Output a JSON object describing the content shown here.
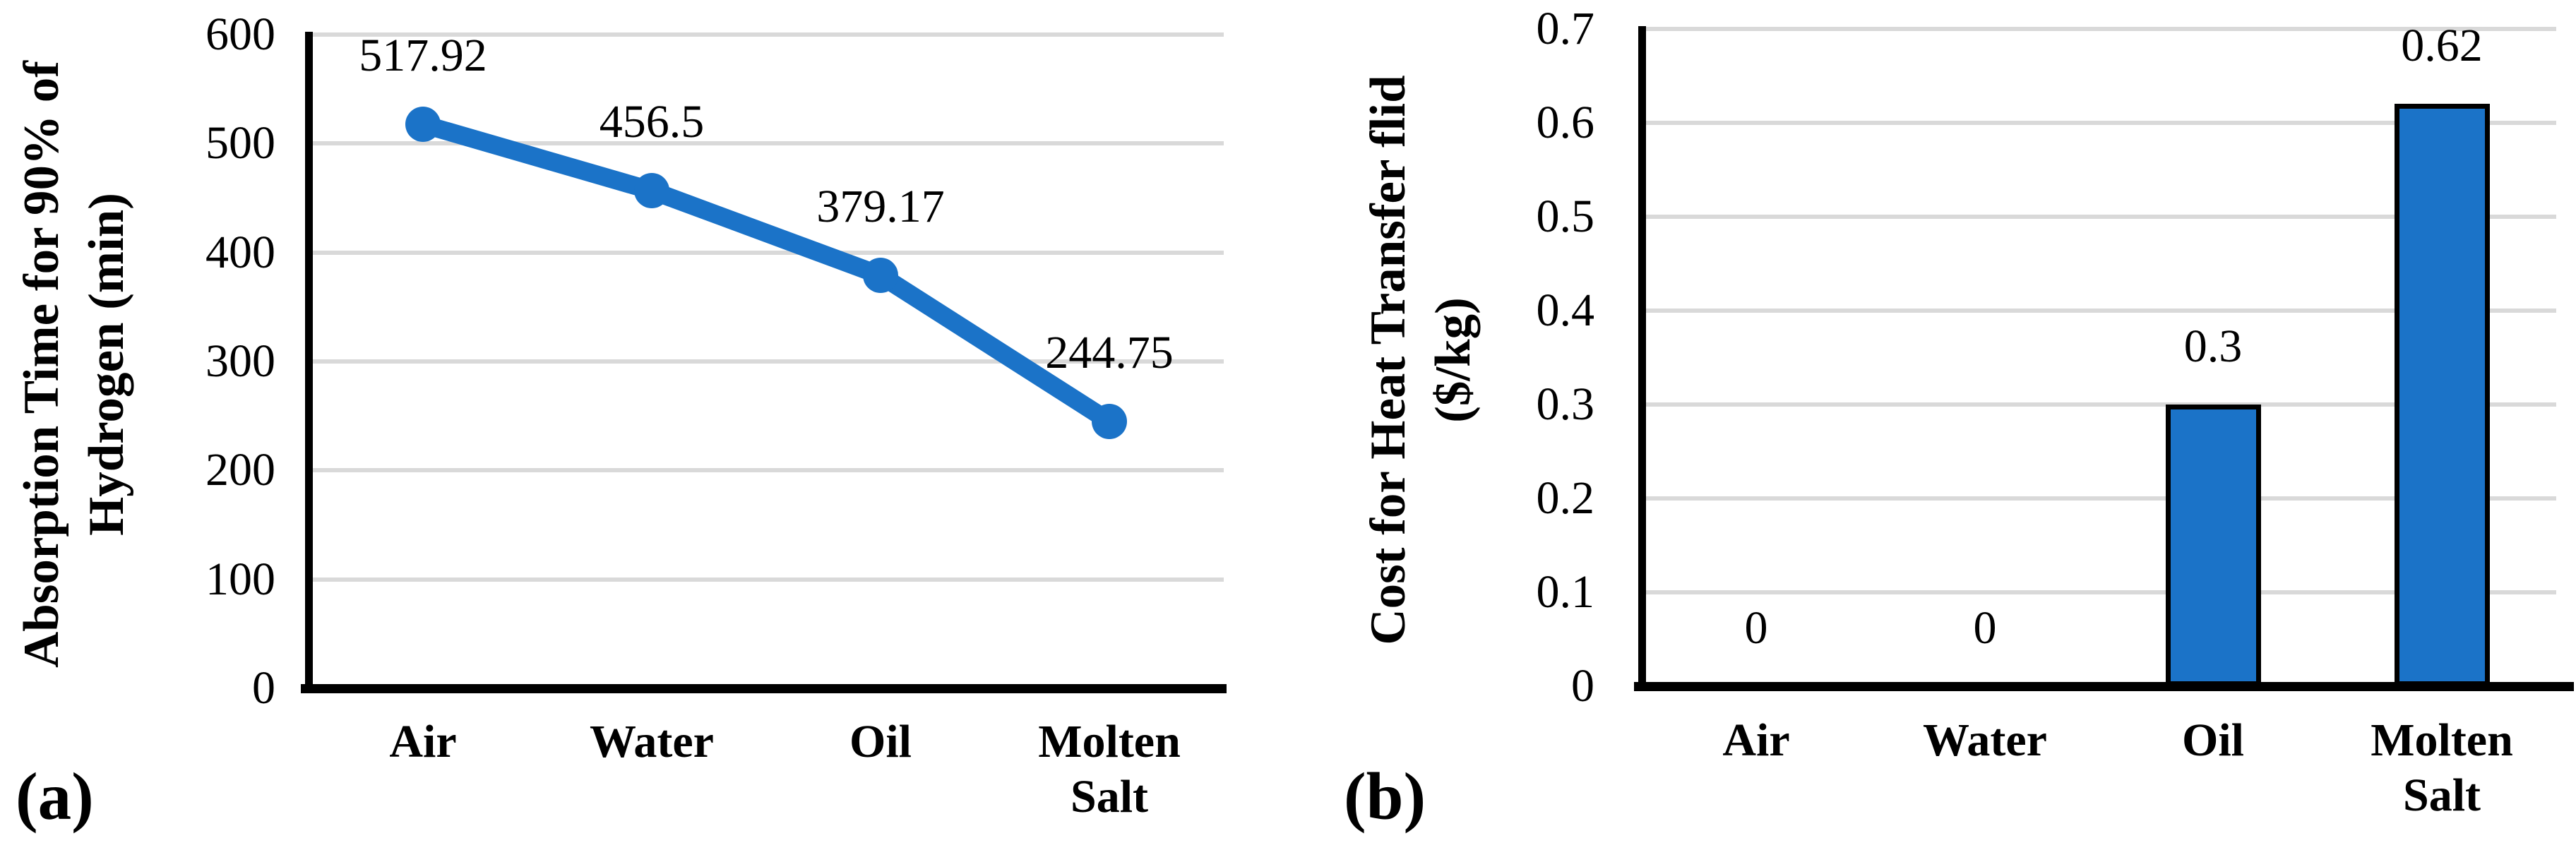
{
  "figure": {
    "panel_a_label": "(a)",
    "panel_b_label": "(b)",
    "accent_color": "#1B73C8",
    "gridline_color": "#D9D9D9",
    "axis_color": "#000000",
    "text_color": "#000000"
  },
  "chart_data": [
    {
      "type": "line",
      "panel": "(a)",
      "title": "",
      "categories": [
        "Air",
        "Water",
        "Oil",
        "Molten Salt"
      ],
      "values": [
        517.92,
        456.5,
        379.17,
        244.75
      ],
      "data_labels": [
        "517.92",
        "456.5",
        "379.17",
        "244.75"
      ],
      "ylabel_line1": "Absorption Time for 90% of",
      "ylabel_line2": "Hydrogen (min)",
      "xlabel": "",
      "ylim": [
        0,
        600
      ],
      "ytick_step": 100,
      "yticks": [
        "0",
        "100",
        "200",
        "300",
        "400",
        "500",
        "600"
      ],
      "grid": true,
      "legend": "none",
      "marker": "circle",
      "line_color": "#1B73C8"
    },
    {
      "type": "bar",
      "panel": "(b)",
      "title": "",
      "categories": [
        "Air",
        "Water",
        "Oil",
        "Molten Salt"
      ],
      "values": [
        0,
        0,
        0.3,
        0.62
      ],
      "data_labels": [
        "0",
        "0",
        "0.3",
        "0.62"
      ],
      "ylabel_line1": "Cost for Heat Transfer flid",
      "ylabel_line2": "($/kg)",
      "xlabel": "",
      "ylim": [
        0,
        0.7
      ],
      "ytick_step": 0.1,
      "yticks": [
        "0",
        "0.1",
        "0.2",
        "0.3",
        "0.4",
        "0.5",
        "0.6",
        "0.7"
      ],
      "grid": true,
      "legend": "none",
      "bar_fill": "#1B73C8",
      "bar_border": "#000000"
    }
  ]
}
